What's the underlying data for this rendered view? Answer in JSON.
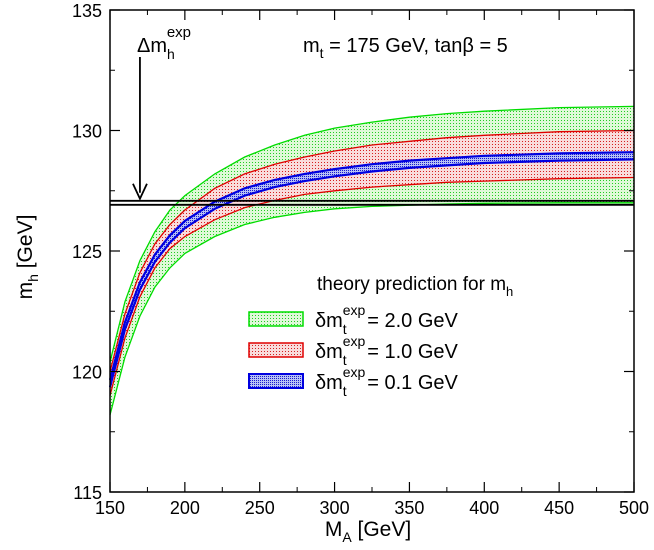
{
  "chart_data": {
    "type": "area",
    "title": "",
    "xlabel": {
      "main": "M",
      "sub": "A",
      "rest": " [GeV]"
    },
    "ylabel": {
      "main": "m",
      "sub": "h",
      "rest": " [GeV]"
    },
    "xlim": [
      150,
      500
    ],
    "ylim": [
      115,
      135
    ],
    "xticks": [
      150,
      200,
      250,
      300,
      350,
      400,
      450,
      500
    ],
    "yticks": [
      115,
      120,
      125,
      130,
      135
    ],
    "grid": false,
    "annotations": {
      "params": "m",
      "params_sub": "t",
      "params_rest": " = 175 GeV, tanβ = 5",
      "arrow_label_main": "Δm",
      "arrow_label_sub": "h",
      "arrow_label_sup": "exp",
      "arrow_x": 170
    },
    "experimental_line": {
      "y": 127.0
    },
    "legend": {
      "position": "bottom-right",
      "title_main": "theory prediction for m",
      "title_sub": "h",
      "entry_main": "δm",
      "entry_sub": "t",
      "entry_sup": "exp"
    },
    "x": [
      150,
      160,
      170,
      180,
      190,
      200,
      220,
      240,
      260,
      280,
      300,
      325,
      350,
      375,
      400,
      450,
      500
    ],
    "series": [
      {
        "name": "= 2.0 GeV",
        "color": "#00dd00",
        "fill": "#c8f5c0",
        "upper": [
          120.4,
          122.9,
          124.6,
          125.8,
          126.7,
          127.3,
          128.2,
          128.9,
          129.4,
          129.8,
          130.1,
          130.35,
          130.55,
          130.7,
          130.8,
          130.95,
          131.0
        ],
        "lower": [
          118.2,
          120.6,
          122.3,
          123.5,
          124.3,
          124.9,
          125.6,
          126.1,
          126.4,
          126.6,
          126.75,
          126.85,
          126.9,
          126.95,
          126.98,
          127.0,
          127.0
        ]
      },
      {
        "name": "= 1.0 GeV",
        "color": "#e00000",
        "fill": "#f5c8c8",
        "upper": [
          120.0,
          122.4,
          124.1,
          125.3,
          126.1,
          126.7,
          127.6,
          128.2,
          128.6,
          128.9,
          129.15,
          129.4,
          129.55,
          129.7,
          129.8,
          129.95,
          130.0
        ],
        "lower": [
          119.0,
          121.4,
          123.1,
          124.3,
          125.1,
          125.6,
          126.3,
          126.8,
          127.1,
          127.35,
          127.5,
          127.65,
          127.75,
          127.85,
          127.9,
          128.0,
          128.05
        ]
      },
      {
        "name": "= 0.1 GeV",
        "color": "#0000e0",
        "fill": "#9aa8f0",
        "upper": [
          119.65,
          122.05,
          123.7,
          124.85,
          125.65,
          126.25,
          127.05,
          127.6,
          127.95,
          128.2,
          128.4,
          128.6,
          128.75,
          128.85,
          128.95,
          129.05,
          129.1
        ],
        "lower": [
          119.35,
          121.75,
          123.4,
          124.55,
          125.35,
          125.95,
          126.75,
          127.3,
          127.65,
          127.9,
          128.1,
          128.3,
          128.45,
          128.55,
          128.65,
          128.75,
          128.8
        ]
      }
    ]
  }
}
